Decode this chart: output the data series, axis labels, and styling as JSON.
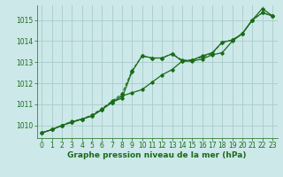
{
  "background_color": "#cce8e8",
  "grid_color": "#aacccc",
  "line_color": "#1a6b1a",
  "xlabel": "Graphe pression niveau de la mer (hPa)",
  "xlim": [
    -0.5,
    23.5
  ],
  "ylim": [
    1009.4,
    1015.7
  ],
  "yticks": [
    1010,
    1011,
    1012,
    1013,
    1014,
    1015
  ],
  "xticks": [
    0,
    1,
    2,
    3,
    4,
    5,
    6,
    7,
    8,
    9,
    10,
    11,
    12,
    13,
    14,
    15,
    16,
    17,
    18,
    19,
    20,
    21,
    22,
    23
  ],
  "series1_x": [
    0,
    1,
    2,
    3,
    4,
    5,
    6,
    7,
    8,
    9,
    10,
    11,
    12,
    13,
    14,
    15,
    16,
    17,
    18,
    19,
    20,
    21,
    22,
    23
  ],
  "series1_y": [
    1009.65,
    1009.8,
    1010.0,
    1010.15,
    1010.3,
    1010.45,
    1010.75,
    1011.1,
    1011.3,
    1012.55,
    1013.3,
    1013.2,
    1013.2,
    1013.4,
    1013.05,
    1013.05,
    1013.15,
    1013.35,
    1013.45,
    1014.0,
    1014.35,
    1015.0,
    1015.35,
    1015.2
  ],
  "series2_x": [
    0,
    1,
    2,
    3,
    4,
    5,
    6,
    7,
    8,
    9,
    10,
    11,
    12,
    13,
    14,
    15,
    16,
    17,
    18,
    19,
    20,
    21,
    22,
    23
  ],
  "series2_y": [
    1009.65,
    1009.8,
    1010.0,
    1010.15,
    1010.3,
    1010.45,
    1010.75,
    1011.1,
    1011.4,
    1011.55,
    1011.7,
    1012.05,
    1012.4,
    1012.65,
    1013.05,
    1013.1,
    1013.3,
    1013.45,
    1013.95,
    1014.05,
    1014.35,
    1015.0,
    1015.55,
    1015.2
  ],
  "series3_x": [
    0,
    1,
    2,
    3,
    4,
    5,
    6,
    7,
    8,
    9,
    10,
    11,
    12,
    13,
    14,
    15,
    16,
    17,
    18,
    19,
    20,
    21,
    22,
    23
  ],
  "series3_y": [
    1009.65,
    1009.8,
    1010.0,
    1010.2,
    1010.3,
    1010.5,
    1010.8,
    1011.15,
    1011.5,
    1012.6,
    1013.3,
    1013.2,
    1013.2,
    1013.4,
    1013.1,
    1013.1,
    1013.25,
    1013.4,
    1013.95,
    1014.05,
    1014.35,
    1015.0,
    1015.35,
    1015.2
  ],
  "tick_fontsize": 5.5,
  "xlabel_fontsize": 6.5
}
